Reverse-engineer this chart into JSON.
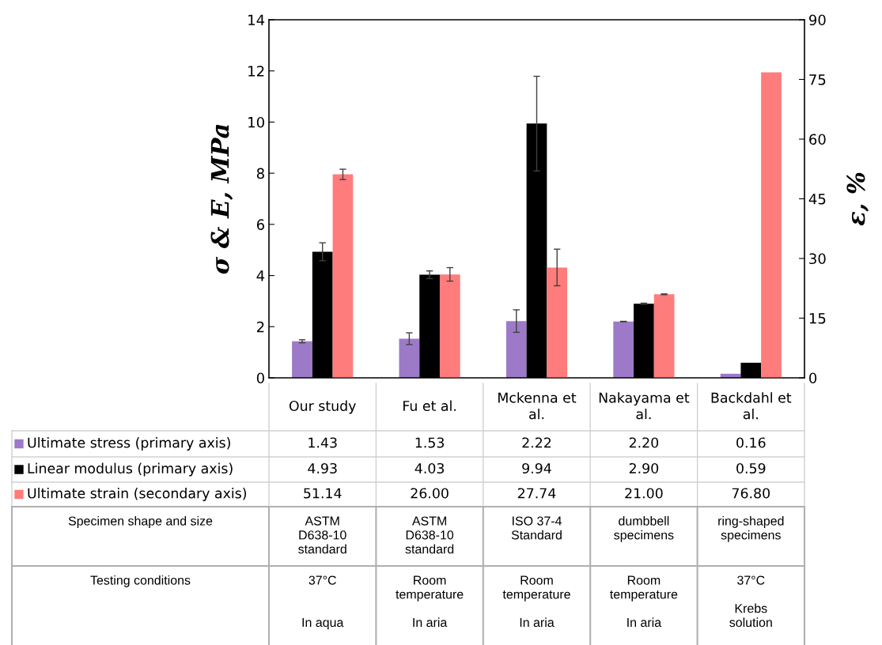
{
  "chart_data": {
    "type": "bar",
    "ylabel": "σ & E, MPa",
    "y2label": "ε, %",
    "categories": [
      "Our study",
      "Fu et al.",
      "Mckenna et\nal.",
      "Nakayama et\nal.",
      "Backdahl et\nal."
    ],
    "series": [
      {
        "name": "Ultimate stress (primary axis)",
        "color": "#9d7ac8",
        "values": [
          1.43,
          1.53,
          2.22,
          2.2,
          0.16
        ],
        "value_labels": [
          "1.43",
          "1.53",
          "2.22",
          "2.20",
          "0.16"
        ],
        "errors": [
          0.06,
          0.23,
          0.44,
          0.01,
          null
        ]
      },
      {
        "name": "Linear modulus (primary axis)",
        "color": "#000000",
        "values": [
          4.93,
          4.03,
          9.94,
          2.9,
          0.59
        ],
        "value_labels": [
          "4.93",
          "4.03",
          "9.94",
          "2.90",
          "0.59"
        ],
        "errors": [
          0.35,
          0.15,
          1.85,
          0.02,
          null
        ]
      },
      {
        "name": "Ultimate strain (secondary axis)",
        "color": "#ff7c7c",
        "axis": "y2",
        "values": [
          51.14,
          26.0,
          27.74,
          21.0,
          76.8
        ],
        "value_labels": [
          "51.14",
          "26.00",
          "27.74",
          "21.00",
          "76.80"
        ],
        "errors": [
          1.3,
          1.7,
          4.6,
          0.1,
          null
        ]
      }
    ],
    "ylim": [
      0,
      14
    ],
    "yticks": [
      0,
      2,
      4,
      6,
      8,
      10,
      12,
      14
    ],
    "y2lim": [
      0,
      90
    ],
    "y2ticks": [
      0,
      15,
      30,
      45,
      60,
      75,
      90
    ],
    "legend": "bottom",
    "grid": false,
    "annotations": [
      "Specimen shape and size",
      "ASTM\nD638-10\nstandard",
      "ASTM\nD638-10\nstandard",
      "ISO 37-4\nStandard",
      "dumbbell\nspecimens",
      "ring-shaped\nspecimens",
      "Testing conditions",
      "37°C\n\n\nIn aqua",
      "Room\ntemperature\n\nIn aria",
      "Room\ntemperature\n\nIn aria",
      "Room\ntemperature\n\nIn aria",
      "37°C\n\nKrebs\nsolution"
    ]
  }
}
